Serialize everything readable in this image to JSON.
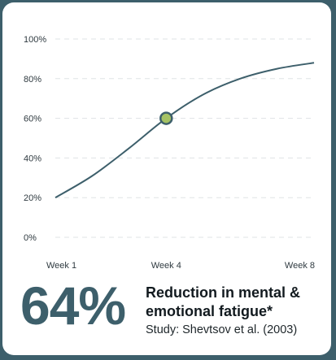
{
  "stat": {
    "value": "64%",
    "label": "Reduction in mental & emotional fatigue*",
    "source": "Study: Shevtsov et al. (2003)"
  },
  "chart_data": {
    "type": "line",
    "categories": [
      "Week 1",
      "Week 4",
      "Week 8"
    ],
    "y_ticks": [
      "0%",
      "20%",
      "40%",
      "60%",
      "80%",
      "100%"
    ],
    "ylim": [
      0,
      100
    ],
    "grid": true,
    "line_color": "#3d5f6b",
    "highlight_color": "#a5c264",
    "series": [
      {
        "x": [
          1,
          2,
          3,
          4,
          5,
          6,
          7,
          8
        ],
        "values": [
          20,
          31,
          45,
          60,
          72,
          80,
          85,
          88
        ]
      }
    ],
    "highlight_index": 3
  }
}
